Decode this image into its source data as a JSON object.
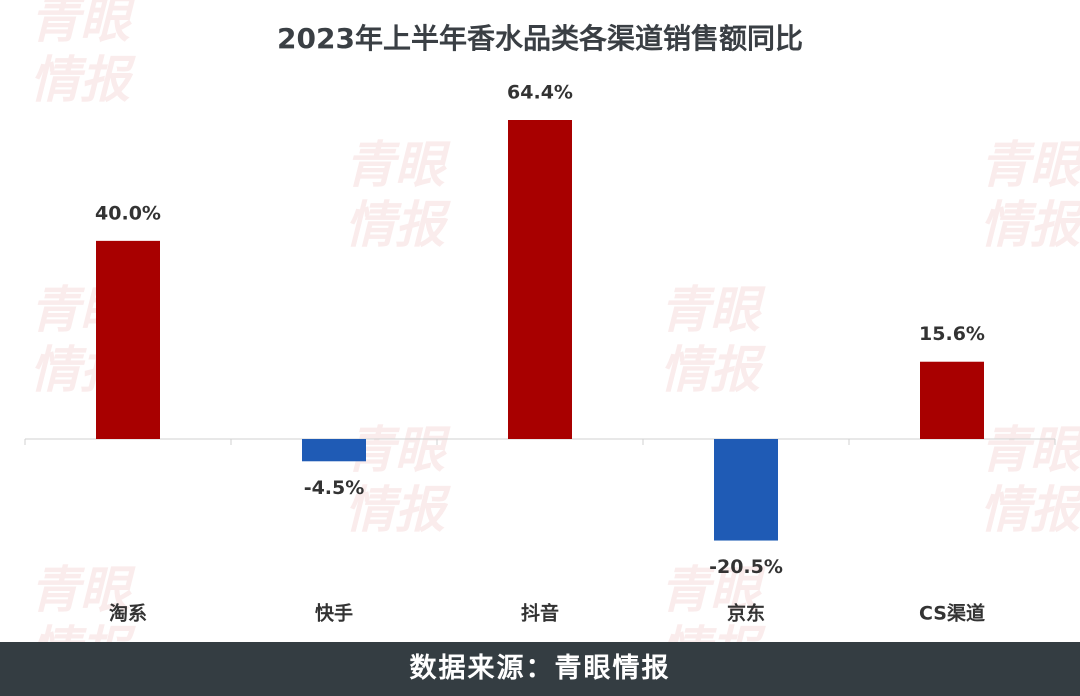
{
  "chart_data": {
    "type": "bar",
    "title": "2023年上半年香水品类各渠道销售额同比",
    "categories": [
      "淘系",
      "快手",
      "抖音",
      "京东",
      "CS渠道"
    ],
    "values": [
      40.0,
      -4.5,
      64.4,
      -20.5,
      15.6
    ],
    "value_labels": [
      "40.0%",
      "-4.5%",
      "64.4%",
      "-20.5%",
      "15.6%"
    ],
    "colors": [
      "#a80000",
      "#1f5bb5",
      "#a80000",
      "#1f5bb5",
      "#a80000"
    ],
    "source": "数据来源：青眼情报",
    "watermark": "青眼情报"
  }
}
